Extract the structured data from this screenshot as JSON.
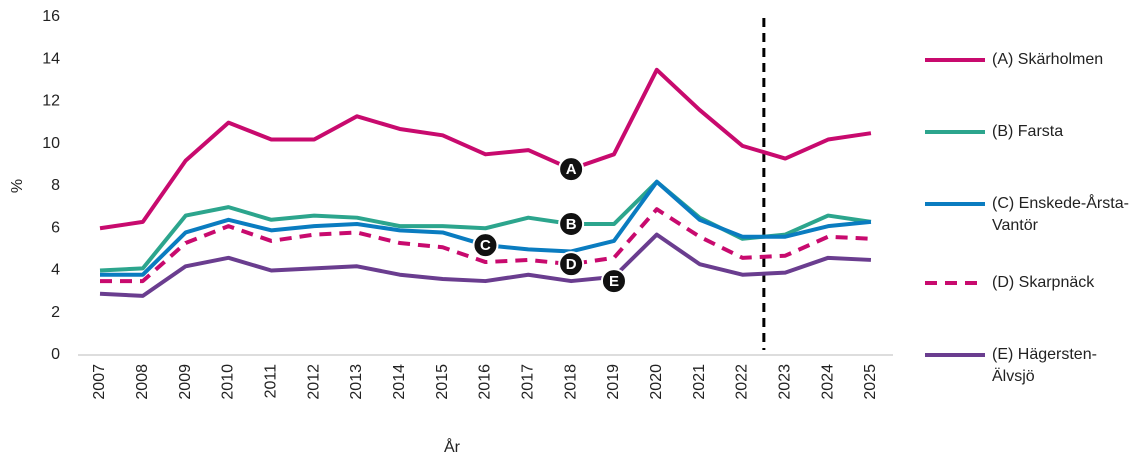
{
  "chart_data": {
    "type": "line",
    "x_label": "År",
    "y_label": "%",
    "categories": [
      "2007",
      "2008",
      "2009",
      "2010",
      "2011",
      "2012",
      "2013",
      "2014",
      "2015",
      "2016",
      "2017",
      "2018",
      "2019",
      "2020",
      "2021",
      "2022",
      "2023",
      "2024",
      "2025"
    ],
    "series": [
      {
        "name": "(A) Skärholmen",
        "color": "#c80a6e",
        "dashed": false,
        "values": [
          6.0,
          6.3,
          9.2,
          11.0,
          10.2,
          10.2,
          11.3,
          10.7,
          10.4,
          9.5,
          9.7,
          8.8,
          9.5,
          13.5,
          11.6,
          9.9,
          9.3,
          10.2,
          10.5
        ]
      },
      {
        "name": "(B) Farsta",
        "color": "#2ca58d",
        "dashed": false,
        "values": [
          4.0,
          4.1,
          6.6,
          7.0,
          6.4,
          6.6,
          6.5,
          6.1,
          6.1,
          6.0,
          6.5,
          6.2,
          6.2,
          8.2,
          6.5,
          5.5,
          5.7,
          6.6,
          6.3
        ]
      },
      {
        "name": "(C) Enskede-Årsta-Vantör",
        "color": "#0a7cc0",
        "dashed": false,
        "values": [
          3.8,
          3.8,
          5.8,
          6.4,
          5.9,
          6.1,
          6.2,
          5.9,
          5.8,
          5.2,
          5.0,
          4.9,
          5.4,
          8.2,
          6.4,
          5.6,
          5.6,
          6.1,
          6.3
        ]
      },
      {
        "name": "(D) Skarpnäck",
        "color": "#c80a6e",
        "dashed": true,
        "values": [
          3.5,
          3.5,
          5.3,
          6.1,
          5.4,
          5.7,
          5.8,
          5.3,
          5.1,
          4.4,
          4.5,
          4.3,
          4.6,
          6.9,
          5.6,
          4.6,
          4.7,
          5.6,
          5.5
        ]
      },
      {
        "name": "(E) Hägersten-Älvsjö",
        "color": "#6a3d8f",
        "dashed": false,
        "values": [
          2.9,
          2.8,
          4.2,
          4.6,
          4.0,
          4.1,
          4.2,
          3.8,
          3.6,
          3.5,
          3.8,
          3.5,
          3.7,
          5.7,
          4.3,
          3.8,
          3.9,
          4.6,
          4.5
        ]
      }
    ],
    "annotations": [
      "A",
      "B",
      "C",
      "D",
      "E"
    ],
    "ylim": [
      0,
      16
    ],
    "yticks": [
      0,
      2,
      4,
      6,
      8,
      10,
      12,
      14,
      16
    ],
    "grid": false
  }
}
